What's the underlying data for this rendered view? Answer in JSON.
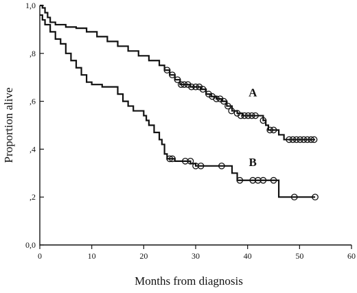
{
  "chart_data": {
    "type": "line",
    "title": "",
    "xlabel": "Months from diagnosis",
    "ylabel": "Proportion alive",
    "xlim": [
      0,
      60
    ],
    "ylim": [
      0,
      1.0
    ],
    "x_ticks": [
      0,
      10,
      20,
      30,
      40,
      50,
      60
    ],
    "x_tick_labels": [
      "0",
      "10",
      "20",
      "30",
      "40",
      "50",
      "60"
    ],
    "y_ticks": [
      0,
      0.2,
      0.4,
      0.6,
      0.8,
      1.0
    ],
    "y_tick_labels": [
      "0,0",
      ",2",
      ",4",
      ",6",
      ",8",
      "1,0"
    ],
    "grid": false,
    "step": true,
    "series": [
      {
        "name": "A",
        "points": [
          [
            0,
            1.0
          ],
          [
            0.5,
            0.99
          ],
          [
            1,
            0.97
          ],
          [
            1.5,
            0.95
          ],
          [
            2,
            0.93
          ],
          [
            3,
            0.92
          ],
          [
            5,
            0.91
          ],
          [
            7,
            0.905
          ],
          [
            9,
            0.89
          ],
          [
            11,
            0.87
          ],
          [
            13,
            0.85
          ],
          [
            15,
            0.83
          ],
          [
            17,
            0.81
          ],
          [
            19,
            0.79
          ],
          [
            21,
            0.77
          ],
          [
            23,
            0.75
          ],
          [
            24,
            0.73
          ],
          [
            25,
            0.71
          ],
          [
            26,
            0.69
          ],
          [
            27,
            0.67
          ],
          [
            28,
            0.67
          ],
          [
            29,
            0.66
          ],
          [
            31,
            0.65
          ],
          [
            32,
            0.63
          ],
          [
            33,
            0.62
          ],
          [
            34,
            0.61
          ],
          [
            35,
            0.6
          ],
          [
            36,
            0.58
          ],
          [
            37,
            0.56
          ],
          [
            38,
            0.55
          ],
          [
            39,
            0.54
          ],
          [
            42,
            0.54
          ],
          [
            43,
            0.52
          ],
          [
            43.5,
            0.5
          ],
          [
            44,
            0.48
          ],
          [
            46,
            0.46
          ],
          [
            47,
            0.44
          ],
          [
            53,
            0.44
          ]
        ],
        "censored": [
          [
            24.5,
            0.73
          ],
          [
            25.5,
            0.71
          ],
          [
            26.5,
            0.69
          ],
          [
            27.2,
            0.67
          ],
          [
            27.8,
            0.67
          ],
          [
            28.5,
            0.67
          ],
          [
            29.2,
            0.66
          ],
          [
            30,
            0.66
          ],
          [
            30.7,
            0.66
          ],
          [
            31.4,
            0.65
          ],
          [
            32.5,
            0.63
          ],
          [
            33.2,
            0.62
          ],
          [
            34,
            0.61
          ],
          [
            34.7,
            0.61
          ],
          [
            35.4,
            0.6
          ],
          [
            36.2,
            0.58
          ],
          [
            36.9,
            0.56
          ],
          [
            38,
            0.55
          ],
          [
            38.7,
            0.54
          ],
          [
            39.4,
            0.54
          ],
          [
            40.1,
            0.54
          ],
          [
            40.8,
            0.54
          ],
          [
            41.5,
            0.54
          ],
          [
            43,
            0.52
          ],
          [
            44.3,
            0.48
          ],
          [
            45,
            0.48
          ],
          [
            48,
            0.44
          ],
          [
            48.7,
            0.44
          ],
          [
            49.4,
            0.44
          ],
          [
            50.1,
            0.44
          ],
          [
            50.8,
            0.44
          ],
          [
            51.5,
            0.44
          ],
          [
            52.2,
            0.44
          ],
          [
            52.8,
            0.44
          ]
        ]
      },
      {
        "name": "B",
        "points": [
          [
            0,
            0.96
          ],
          [
            0.5,
            0.94
          ],
          [
            1,
            0.92
          ],
          [
            2,
            0.89
          ],
          [
            3,
            0.86
          ],
          [
            4,
            0.84
          ],
          [
            5,
            0.8
          ],
          [
            6,
            0.77
          ],
          [
            7,
            0.74
          ],
          [
            8,
            0.71
          ],
          [
            9,
            0.68
          ],
          [
            10,
            0.67
          ],
          [
            12,
            0.66
          ],
          [
            15,
            0.63
          ],
          [
            16,
            0.6
          ],
          [
            17,
            0.58
          ],
          [
            18,
            0.56
          ],
          [
            20,
            0.54
          ],
          [
            20.5,
            0.52
          ],
          [
            21,
            0.5
          ],
          [
            22,
            0.47
          ],
          [
            23,
            0.44
          ],
          [
            23.5,
            0.42
          ],
          [
            24,
            0.38
          ],
          [
            24.5,
            0.36
          ],
          [
            26,
            0.35
          ],
          [
            29,
            0.34
          ],
          [
            30,
            0.33
          ],
          [
            33,
            0.33
          ],
          [
            37,
            0.3
          ],
          [
            38,
            0.27
          ],
          [
            44,
            0.27
          ],
          [
            46,
            0.2
          ],
          [
            53,
            0.2
          ]
        ],
        "censored": [
          [
            25,
            0.36
          ],
          [
            25.5,
            0.36
          ],
          [
            28,
            0.35
          ],
          [
            29,
            0.35
          ],
          [
            30,
            0.33
          ],
          [
            31,
            0.33
          ],
          [
            35,
            0.33
          ],
          [
            38.5,
            0.27
          ],
          [
            41,
            0.27
          ],
          [
            42,
            0.27
          ],
          [
            43,
            0.27
          ],
          [
            45,
            0.27
          ],
          [
            49,
            0.2
          ],
          [
            53,
            0.2
          ]
        ]
      }
    ],
    "annotations": [
      {
        "text": "A",
        "x": 41,
        "y": 0.62
      },
      {
        "text": "B",
        "x": 41,
        "y": 0.33
      }
    ]
  }
}
